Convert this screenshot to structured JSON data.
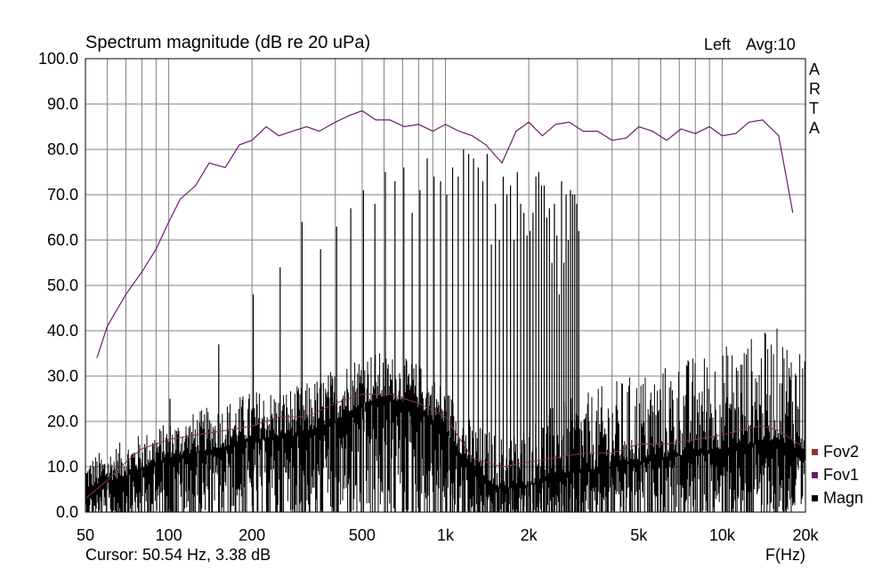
{
  "header": {
    "title": "Spectrum magnitude (dB re 20 uPa)",
    "channel": "Left",
    "avg": "Avg:10",
    "brand_letters": [
      "A",
      "R",
      "T",
      "A"
    ]
  },
  "footer": {
    "cursor": "Cursor: 50.54 Hz, 3.38 dB",
    "x_unit": "F(Hz)"
  },
  "colors": {
    "magn": "#000000",
    "fov1": "#6a1a6e",
    "fov2": "#8b3a3a",
    "grid": "#808080"
  },
  "chart_data": {
    "type": "line",
    "title": "Spectrum magnitude (dB re 20 uPa)",
    "xlabel": "F(Hz)",
    "ylabel": "",
    "x_scale": "log",
    "xlim": [
      50,
      20000
    ],
    "ylim": [
      0,
      100
    ],
    "x_ticks": [
      50,
      100,
      200,
      500,
      1000,
      2000,
      5000,
      10000,
      20000
    ],
    "x_tick_labels": [
      "50",
      "100",
      "200",
      "500",
      "1k",
      "2k",
      "5k",
      "10k",
      "20k"
    ],
    "y_ticks": [
      0,
      10,
      20,
      30,
      40,
      50,
      60,
      70,
      80,
      90,
      100
    ],
    "y_tick_labels": [
      "0.0",
      "10.0",
      "20.0",
      "30.0",
      "40.0",
      "50.0",
      "60.0",
      "70.0",
      "80.0",
      "90.0",
      "100.0"
    ],
    "grid": true,
    "legend": {
      "placement": "bottom-right",
      "entries": [
        "Fov2",
        "Fov1",
        "Magn"
      ]
    },
    "series": [
      {
        "name": "Fov1",
        "x": [
          55,
          60,
          70,
          80,
          90,
          100,
          110,
          125,
          140,
          160,
          180,
          200,
          225,
          250,
          280,
          315,
          350,
          400,
          450,
          500,
          560,
          630,
          710,
          800,
          900,
          1000,
          1120,
          1250,
          1400,
          1600,
          1800,
          2000,
          2240,
          2500,
          2800,
          3150,
          3550,
          4000,
          4500,
          5000,
          5600,
          6300,
          7100,
          8000,
          9000,
          10000,
          11200,
          12500,
          14000,
          16000,
          18000
        ],
        "values": [
          34,
          41,
          48,
          53,
          58,
          64,
          69,
          72,
          77,
          76,
          81,
          82,
          85,
          83,
          84,
          85,
          84,
          86,
          87.5,
          88.5,
          86.5,
          86.5,
          85,
          85.5,
          84,
          85.5,
          84,
          83,
          81,
          77,
          84,
          86,
          83,
          85.5,
          86,
          84,
          84,
          82,
          82.5,
          85,
          84,
          82,
          84.5,
          83.5,
          85,
          83,
          83.5,
          86,
          86.5,
          83,
          66
        ]
      },
      {
        "name": "Fov2",
        "x": [
          50,
          60,
          70,
          80,
          90,
          100,
          125,
          160,
          200,
          250,
          315,
          400,
          500,
          630,
          800,
          1000,
          1250,
          1600,
          2000,
          2500,
          3150,
          4000,
          5000,
          6300,
          8000,
          10000,
          12500,
          14000,
          16000,
          20000
        ],
        "values": [
          3,
          7,
          11,
          14,
          15,
          16,
          17,
          18,
          19,
          21,
          21,
          24,
          26,
          26,
          24,
          21,
          12,
          10,
          11,
          12,
          13,
          13,
          15,
          15,
          16,
          17,
          18.5,
          19,
          18,
          14
        ]
      },
      {
        "name": "Magn",
        "harmonic_fundamental_hz": 50.54,
        "harmonic_peaks_db": [
          3.38,
          25,
          37,
          48,
          54,
          64,
          58,
          63,
          67,
          71,
          68,
          75,
          73,
          76,
          66,
          71,
          78,
          74,
          73,
          70,
          76,
          74,
          80,
          79,
          78,
          76,
          73,
          79,
          59,
          68,
          60,
          74,
          70,
          72,
          60,
          75,
          68,
          66,
          61,
          62,
          66,
          74,
          75,
          72,
          72,
          65,
          67,
          55,
          68,
          61,
          48,
          73,
          55,
          70,
          60,
          71,
          70,
          70,
          68,
          62
        ],
        "noise_floor_db": {
          "x": [
            50,
            70,
            100,
            150,
            200,
            300,
            400,
            500,
            630,
            800,
            1000,
            1250,
            1600,
            2000,
            2500,
            3150,
            4000,
            5000,
            6300,
            8000,
            10000,
            12500,
            16000,
            20000
          ],
          "mean": [
            5,
            8,
            12,
            14,
            16,
            17,
            20,
            24,
            25,
            23,
            18,
            9,
            5,
            6,
            8,
            9,
            10,
            11,
            12,
            13,
            14,
            15,
            16,
            13
          ],
          "upper": [
            12,
            16,
            20,
            24,
            27,
            28,
            32,
            36,
            35,
            33,
            28,
            20,
            17,
            20,
            24,
            26,
            29,
            31,
            33,
            35,
            37,
            39,
            41,
            38
          ]
        }
      }
    ]
  }
}
